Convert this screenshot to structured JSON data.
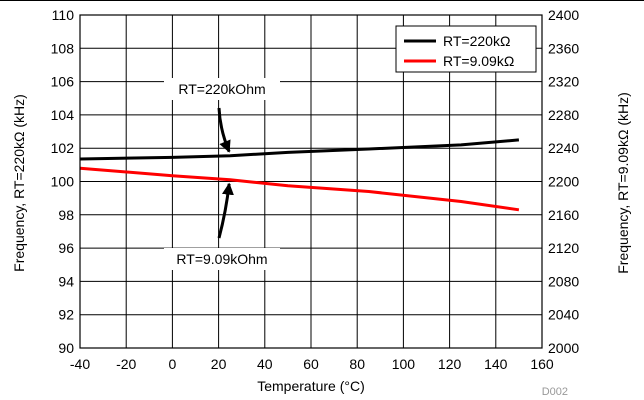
{
  "chart_data": {
    "type": "line",
    "title": "",
    "xlabel": "Temperature (°C)",
    "ylabel_left": "Frequency, RT=220kΩ (kHz)",
    "ylabel_right": "Frequency, RT=9.09kΩ (kHz)",
    "xlim": [
      -40,
      160
    ],
    "ylim_left": [
      90,
      110
    ],
    "ylim_right": [
      2000,
      2400
    ],
    "x_ticks": [
      "-40",
      "-20",
      "0",
      "20",
      "40",
      "60",
      "80",
      "100",
      "120",
      "140",
      "160"
    ],
    "y_ticks_left": [
      "90",
      "92",
      "94",
      "96",
      "98",
      "100",
      "102",
      "104",
      "106",
      "108",
      "110"
    ],
    "y_ticks_right": [
      "2000",
      "2040",
      "2080",
      "2120",
      "2160",
      "2200",
      "2240",
      "2280",
      "2320",
      "2360",
      "2400"
    ],
    "grid": true,
    "legend_position": "top-right",
    "series": [
      {
        "name": "RT=220kΩ",
        "axis": "left",
        "color": "#000000",
        "x": [
          -40,
          0,
          25,
          50,
          85,
          125,
          150
        ],
        "y": [
          101.35,
          101.45,
          101.55,
          101.75,
          101.95,
          102.2,
          102.5
        ]
      },
      {
        "name": "RT=9.09kΩ",
        "axis": "right",
        "color": "#ff0000",
        "x": [
          -40,
          0,
          25,
          50,
          85,
          125,
          150
        ],
        "y": [
          2216,
          2207,
          2202,
          2195,
          2188,
          2176,
          2166
        ]
      }
    ],
    "annotations": [
      {
        "text": "RT=220kOhm",
        "x": 25,
        "y": 101.55,
        "series": "RT=220kΩ"
      },
      {
        "text": "RT=9.09kOhm",
        "x": 25,
        "y": 2202,
        "series": "RT=9.09kΩ"
      }
    ],
    "footnote": "D002"
  }
}
